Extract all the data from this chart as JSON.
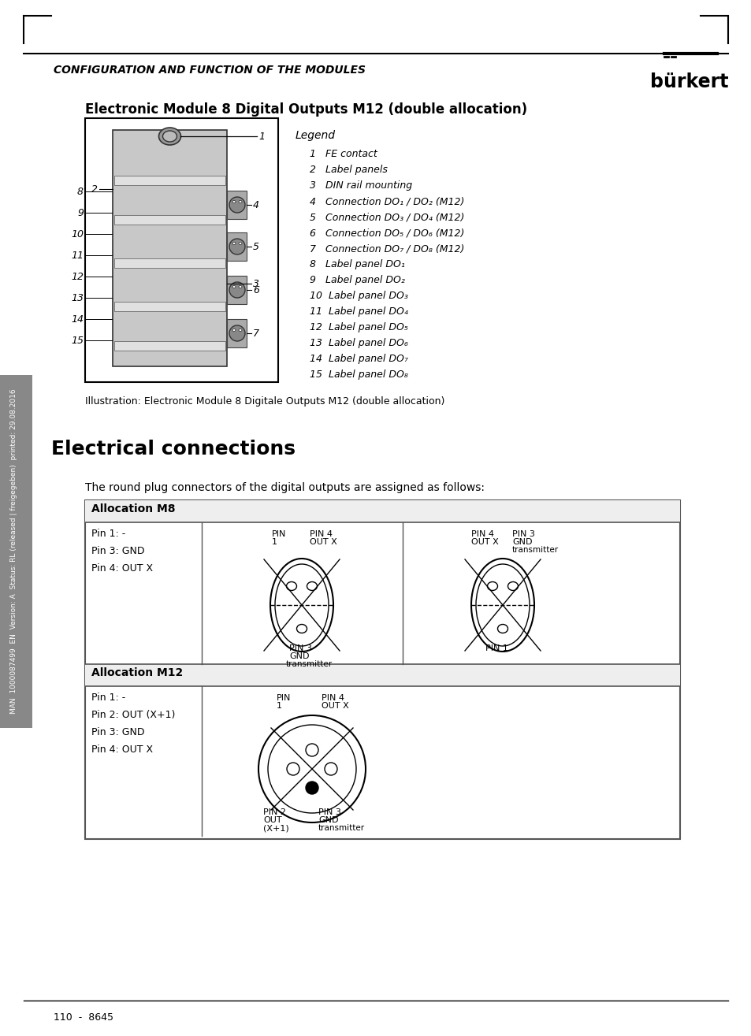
{
  "page_title": "CONFIGURATION AND FUNCTION OF THE MODULES",
  "brand": "bürkert",
  "section_title": "Electronic Module 8 Digital Outputs M12 (double allocation)",
  "illustration_caption": "Illustration: Electronic Module 8 Digitale Outputs M12 (double allocation)",
  "legend_title": "Legend",
  "legend_items": [
    "1   FE contact",
    "2   Label panels",
    "3   DIN rail mounting",
    "4   Connection DO₁ / DO₂ (M12)",
    "5   Connection DO₃ / DO₄ (M12)",
    "6   Connection DO₅ / DO₆ (M12)",
    "7   Connection DO₇ / DO₈ (M12)",
    "8   Label panel DO₁",
    "9   Label panel DO₂",
    "10  Label panel DO₃",
    "11  Label panel DO₄",
    "12  Label panel DO₅",
    "13  Label panel DO₆",
    "14  Label panel DO₇",
    "15  Label panel DO₈"
  ],
  "section2_title": "Electrical connections",
  "section2_intro": "The round plug connectors of the digital outputs are assigned as follows:",
  "alloc_m8_title": "Allocation M8",
  "alloc_m8_pins": "Pin 1: -\nPin 3: GND\nPin 4: OUT X",
  "alloc_m12_title": "Allocation M12",
  "alloc_m12_pins": "Pin 1: -\nPin 2: OUT (X+1)\nPin 3: GND\nPin 4: OUT X",
  "footer_text": "110  -  8645",
  "sidebar_text": "MAN  1000087499  EN  Version: A  Status: RL (released | freigegeben)  printed: 29.08.2016",
  "bg_color": "#ffffff",
  "text_color": "#000000",
  "table_border": "#555555"
}
